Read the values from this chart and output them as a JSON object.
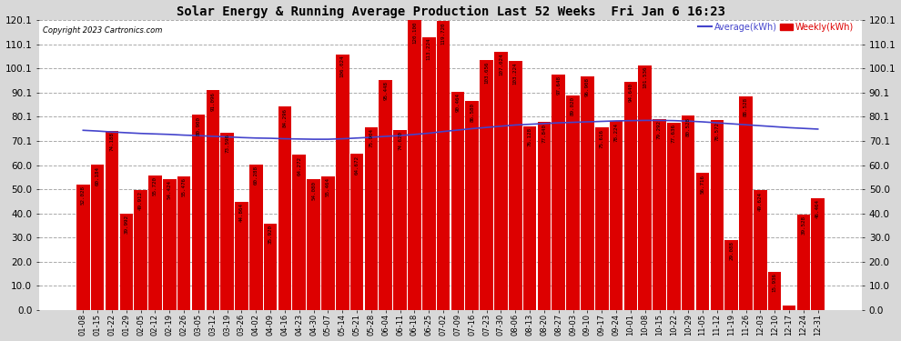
{
  "title": "Solar Energy & Running Average Production Last 52 Weeks  Fri Jan 6 16:23",
  "copyright": "Copyright 2023 Cartronics.com",
  "legend_avg": "Average(kWh)",
  "legend_weekly": "Weekly(kWh)",
  "bar_color": "#dd0000",
  "avg_line_color": "#4444cc",
  "plot_bg_color": "#ffffff",
  "fig_bg_color": "#d8d8d8",
  "grid_color": "#aaaaaa",
  "ylim": [
    0,
    120.1
  ],
  "yticks": [
    0.0,
    10.0,
    20.0,
    30.0,
    40.0,
    50.0,
    60.0,
    70.1,
    80.1,
    90.1,
    100.1,
    110.1,
    120.1
  ],
  "categories": [
    "01-08",
    "01-15",
    "01-22",
    "01-29",
    "02-05",
    "02-12",
    "02-19",
    "02-26",
    "03-05",
    "03-12",
    "03-19",
    "03-26",
    "04-02",
    "04-09",
    "04-16",
    "04-23",
    "04-30",
    "05-07",
    "05-14",
    "05-21",
    "05-28",
    "06-04",
    "06-11",
    "06-18",
    "06-25",
    "07-02",
    "07-09",
    "07-16",
    "07-23",
    "07-30",
    "08-06",
    "08-13",
    "08-20",
    "08-27",
    "09-03",
    "09-10",
    "09-17",
    "09-24",
    "10-01",
    "10-08",
    "10-15",
    "10-22",
    "10-29",
    "11-05",
    "11-12",
    "11-19",
    "11-26",
    "12-03",
    "12-10",
    "12-17",
    "12-24",
    "12-31"
  ],
  "weekly_values": [
    52.028,
    60.184,
    74.188,
    39.992,
    49.912,
    55.72,
    54.424,
    55.476,
    80.9,
    91.096,
    73.596,
    44.864,
    60.288,
    35.92,
    84.296,
    64.272,
    54.08,
    55.464,
    106.024,
    64.672,
    75.904,
    95.448,
    74.62,
    120.1,
    113.224,
    119.72,
    90.464,
    86.58,
    103.656,
    107.024,
    103.224,
    76.128,
    77.84,
    97.648,
    89.02,
    96.908,
    75.616,
    78.224,
    94.64,
    101.536,
    79.292,
    77.636,
    80.528,
    56.716,
    78.572,
    29.088,
    88.528,
    49.624,
    15.936,
    1.928,
    39.528,
    46.464
  ],
  "avg_values": [
    74.5,
    74.2,
    73.8,
    73.5,
    73.2,
    73.0,
    72.8,
    72.5,
    72.3,
    72.0,
    71.8,
    71.5,
    71.3,
    71.2,
    71.0,
    70.9,
    70.8,
    70.8,
    71.0,
    71.3,
    71.6,
    72.0,
    72.3,
    72.8,
    73.3,
    74.0,
    74.6,
    75.2,
    75.7,
    76.2,
    76.7,
    77.0,
    77.3,
    77.6,
    77.8,
    78.0,
    78.2,
    78.4,
    78.5,
    78.6,
    78.6,
    78.5,
    78.3,
    78.0,
    77.6,
    77.2,
    76.8,
    76.4,
    76.0,
    75.6,
    75.3,
    75.0
  ]
}
